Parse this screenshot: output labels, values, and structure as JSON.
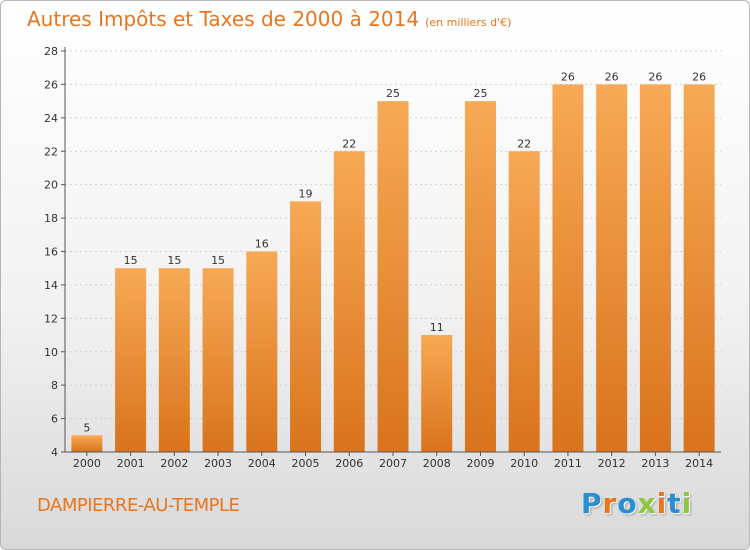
{
  "header": {
    "title": "Autres Impôts et Taxes de 2000 à 2014",
    "subtitle": "(en milliers d'€)"
  },
  "footer": {
    "location": "DAMPIERRE-AU-TEMPLE",
    "logo": "Proxiti",
    "logo_colors": [
      "#2a8fd0",
      "#e8761e",
      "#2a8fd0",
      "#8dc63f",
      "#e8761e",
      "#2a8fd0",
      "#8dc63f"
    ]
  },
  "colors": {
    "accent": "#e8761e",
    "bar_light": "#f7a955",
    "bar_dark": "#d9731d",
    "axis": "#555555",
    "grid": "#cfcfcf",
    "tick_text": "#333333"
  },
  "chart_data": {
    "type": "bar",
    "title": "Autres Impôts et Taxes de 2000 à 2014",
    "subtitle": "(en milliers d'€)",
    "xlabel": "",
    "ylabel": "",
    "categories": [
      "2000",
      "2001",
      "2002",
      "2003",
      "2004",
      "2005",
      "2006",
      "2007",
      "2008",
      "2009",
      "2010",
      "2011",
      "2012",
      "2013",
      "2014"
    ],
    "values": [
      5,
      15,
      15,
      15,
      16,
      19,
      22,
      25,
      11,
      25,
      22,
      26,
      26,
      26,
      26
    ],
    "ylim": [
      4,
      28
    ],
    "yticks": [
      4,
      6,
      8,
      10,
      12,
      14,
      16,
      18,
      20,
      22,
      24,
      26,
      28
    ],
    "grid": true,
    "legend": "none",
    "data_labels": true
  }
}
